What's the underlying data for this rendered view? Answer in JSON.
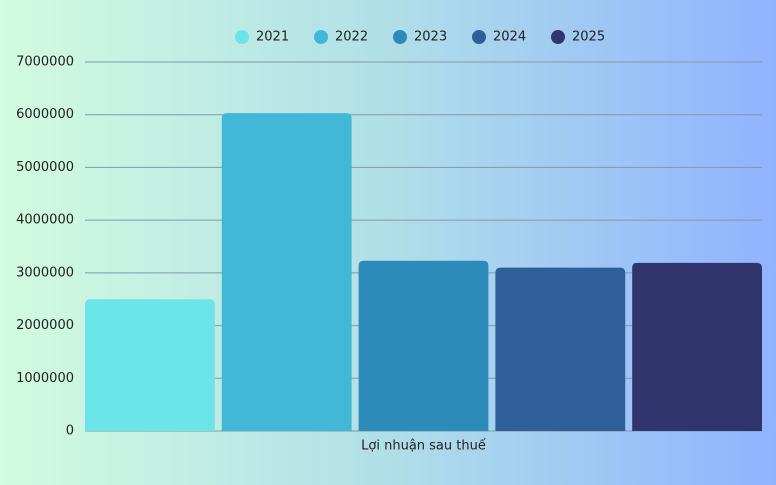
{
  "chart_data": {
    "type": "bar",
    "categories": [
      "Lợi nhuận sau thuế"
    ],
    "series": [
      {
        "name": "2021",
        "color": "#6ce5e8",
        "values": [
          2500000
        ]
      },
      {
        "name": "2022",
        "color": "#41b8d5",
        "values": [
          6030000
        ]
      },
      {
        "name": "2023",
        "color": "#2d8bba",
        "values": [
          3230000
        ]
      },
      {
        "name": "2024",
        "color": "#2f5f98",
        "values": [
          3100000
        ]
      },
      {
        "name": "2025",
        "color": "#31356e",
        "values": [
          3190000
        ]
      }
    ],
    "ylim": [
      0,
      7000000
    ],
    "yticks": [
      0,
      1000000,
      2000000,
      3000000,
      4000000,
      5000000,
      6000000,
      7000000
    ],
    "grid": true,
    "legend": "top"
  }
}
